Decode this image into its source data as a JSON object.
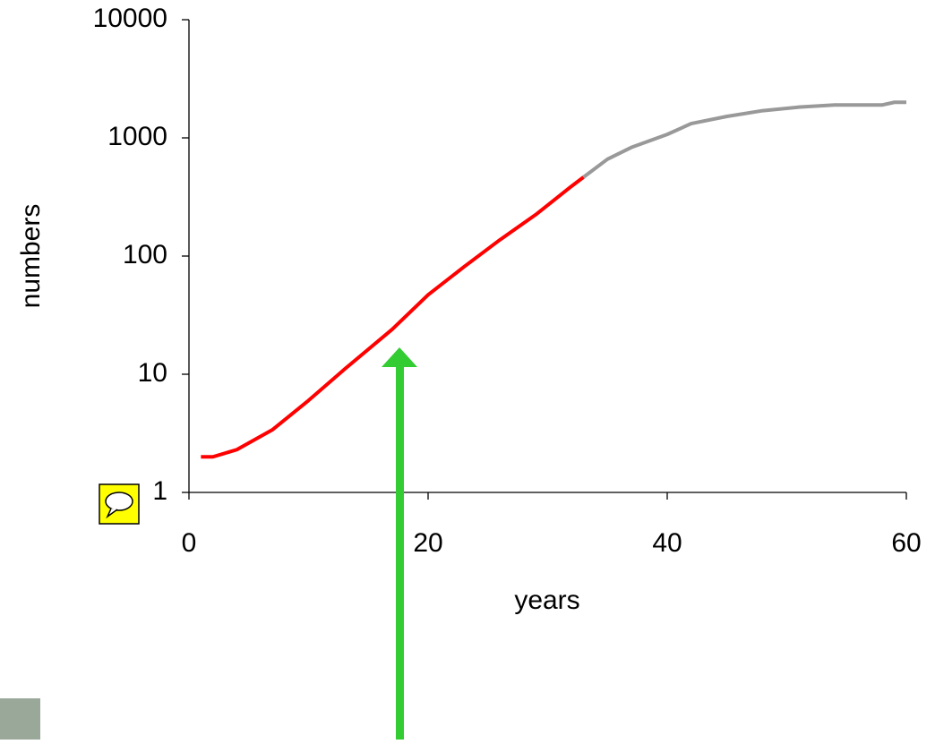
{
  "chart_data": {
    "type": "line",
    "x_label": "years",
    "y_label": "numbers",
    "xlim": [
      0,
      60
    ],
    "xticks": [
      0,
      20,
      40,
      60
    ],
    "ylim": [
      1,
      10000
    ],
    "yticks": [
      1,
      10,
      100,
      1000,
      10000
    ],
    "y_scale": "log",
    "series": [
      {
        "color": "#ff0000",
        "x": [
          1,
          2,
          4,
          7,
          10,
          13,
          17,
          20,
          23,
          26,
          29,
          32,
          33
        ],
        "values": [
          2,
          2,
          2.3,
          3.4,
          6,
          11,
          24,
          47,
          81,
          137,
          224,
          390,
          465
        ]
      },
      {
        "color": "#999999",
        "x": [
          33,
          35,
          37,
          40,
          42,
          45,
          48,
          51,
          54,
          58,
          59,
          60
        ],
        "values": [
          465,
          660,
          830,
          1070,
          1320,
          1520,
          1700,
          1820,
          1900,
          1900,
          2000,
          2000
        ]
      }
    ]
  }
}
